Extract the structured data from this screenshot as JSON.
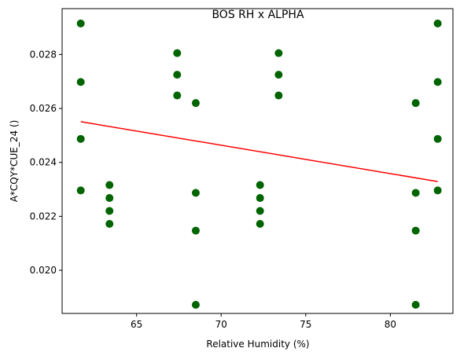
{
  "chart_data": {
    "type": "scatter",
    "title": "BOS RH x ALPHA",
    "xlabel": "Relative Humidity (%)",
    "ylabel": "A*CQY*CUE_24 ()",
    "xlim": [
      60.6,
      83.7
    ],
    "ylim": [
      0.0184,
      0.0297
    ],
    "x_ticks": [
      65,
      70,
      75,
      80
    ],
    "y_ticks": [
      0.02,
      0.022,
      0.024,
      0.026,
      0.028
    ],
    "x_tick_labels": [
      "65",
      "70",
      "75",
      "80"
    ],
    "y_tick_labels": [
      "0.020",
      "0.022",
      "0.024",
      "0.026",
      "0.028"
    ],
    "grid": false,
    "point_color": "#006400",
    "line_color": "#ff0000",
    "points": [
      {
        "x": 61.7,
        "y": 0.02915
      },
      {
        "x": 61.7,
        "y": 0.02698
      },
      {
        "x": 61.7,
        "y": 0.02487
      },
      {
        "x": 61.7,
        "y": 0.02296
      },
      {
        "x": 63.4,
        "y": 0.02316
      },
      {
        "x": 63.4,
        "y": 0.02268
      },
      {
        "x": 63.4,
        "y": 0.0222
      },
      {
        "x": 63.4,
        "y": 0.02172
      },
      {
        "x": 67.4,
        "y": 0.02805
      },
      {
        "x": 67.4,
        "y": 0.02725
      },
      {
        "x": 67.4,
        "y": 0.02648
      },
      {
        "x": 68.5,
        "y": 0.0262
      },
      {
        "x": 68.5,
        "y": 0.02287
      },
      {
        "x": 68.5,
        "y": 0.02147
      },
      {
        "x": 68.5,
        "y": 0.01872
      },
      {
        "x": 72.3,
        "y": 0.02316
      },
      {
        "x": 72.3,
        "y": 0.02268
      },
      {
        "x": 72.3,
        "y": 0.0222
      },
      {
        "x": 72.3,
        "y": 0.02172
      },
      {
        "x": 73.4,
        "y": 0.02805
      },
      {
        "x": 73.4,
        "y": 0.02725
      },
      {
        "x": 73.4,
        "y": 0.02648
      },
      {
        "x": 81.5,
        "y": 0.0262
      },
      {
        "x": 81.5,
        "y": 0.02287
      },
      {
        "x": 81.5,
        "y": 0.02147
      },
      {
        "x": 81.5,
        "y": 0.01872
      },
      {
        "x": 82.8,
        "y": 0.02915
      },
      {
        "x": 82.8,
        "y": 0.02698
      },
      {
        "x": 82.8,
        "y": 0.02487
      },
      {
        "x": 82.8,
        "y": 0.02296
      }
    ],
    "trend_line": [
      {
        "x": 61.7,
        "y": 0.02551
      },
      {
        "x": 82.8,
        "y": 0.02329
      }
    ]
  }
}
